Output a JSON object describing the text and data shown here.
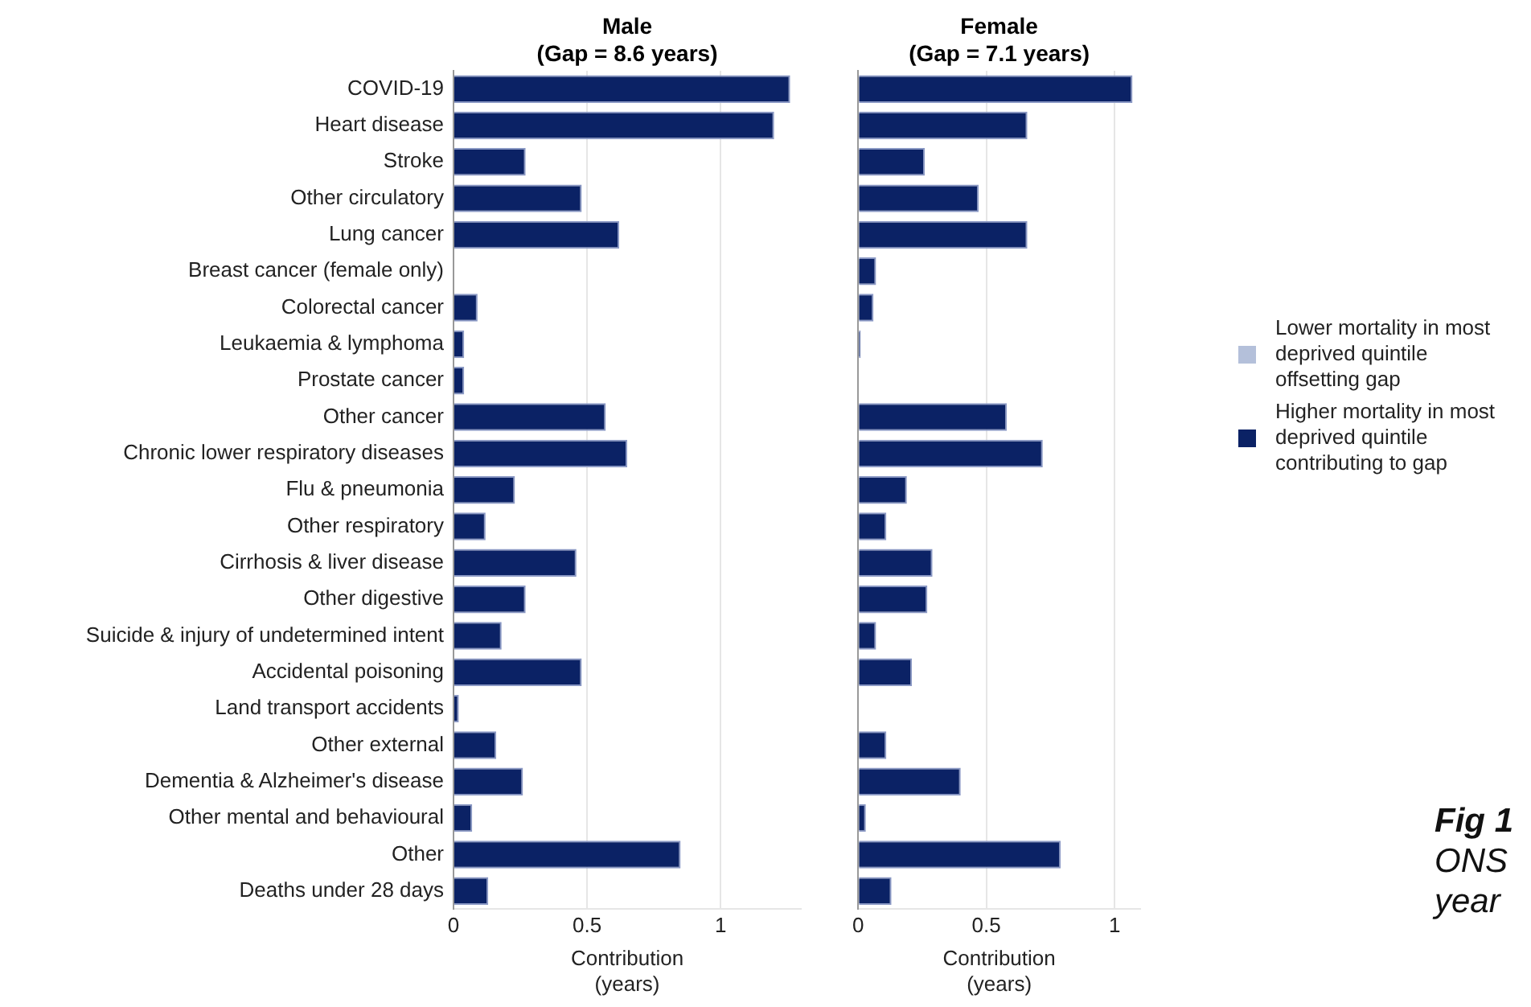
{
  "chart_data": [
    {
      "type": "bar",
      "orientation": "horizontal",
      "title": "Male\n(Gap = 8.6 years)",
      "xlabel": "Contribution\n(years)",
      "categories": [
        "COVID-19",
        "Heart disease",
        "Stroke",
        "Other circulatory",
        "Lung cancer",
        "Breast cancer (female only)",
        "Colorectal cancer",
        "Leukaemia & lymphoma",
        "Prostate cancer",
        "Other cancer",
        "Chronic lower respiratory diseases",
        "Flu & pneumonia",
        "Other respiratory",
        "Cirrhosis & liver disease",
        "Other digestive",
        "Suicide & injury of undetermined intent",
        "Accidental poisoning",
        "Land transport accidents",
        "Other external",
        "Dementia & Alzheimer's disease",
        "Other mental and behavioural",
        "Other",
        "Deaths under 28 days"
      ],
      "series": [
        {
          "color": "#0b2265",
          "values": [
            1.26,
            1.2,
            0.27,
            0.48,
            0.62,
            0,
            0.09,
            0.04,
            0.04,
            0.57,
            0.65,
            0.23,
            0.12,
            0.46,
            0.27,
            0.18,
            0.48,
            0.02,
            0.16,
            0.26,
            0.07,
            0.85,
            0.13
          ]
        }
      ],
      "xlim": [
        0,
        1.3
      ],
      "xticks": [
        0,
        0.5,
        1
      ],
      "grid": "x"
    },
    {
      "type": "bar",
      "orientation": "horizontal",
      "title": "Female\n(Gap = 7.1 years)",
      "xlabel": "Contribution\n(years)",
      "categories": [
        null,
        null,
        null,
        null,
        null,
        null,
        null,
        null,
        null,
        null,
        null,
        null,
        null,
        null,
        null,
        null,
        null,
        null,
        null,
        null,
        null,
        null,
        null
      ],
      "series": [
        {
          "name": "Lower mortality in most deprived quintile offsetting gap",
          "color": "#b4c0da",
          "values": [
            null,
            null,
            null,
            null,
            null,
            null,
            null,
            null,
            null,
            null,
            null,
            null,
            null,
            null,
            null,
            null,
            null,
            null,
            null,
            null,
            null,
            null,
            null
          ]
        },
        {
          "name": "Higher mortality in most deprived quintile contributing to gap",
          "color": "#0b2265",
          "values": [
            1.07,
            0.66,
            0.26,
            0.47,
            0.66,
            0.07,
            0.06,
            0.01,
            0,
            0.58,
            0.72,
            0.19,
            0.11,
            0.29,
            0.27,
            0.07,
            0.21,
            0,
            0.11,
            0.4,
            0.03,
            0.79,
            0.13
          ]
        }
      ],
      "xlim": [
        0,
        1.1
      ],
      "xticks": [
        0,
        0.5,
        1
      ],
      "grid": "x",
      "tick_labels": "x",
      "legend": "right",
      "annotations": [
        "Fig 1",
        "ONS",
        "year"
      ]
    }
  ]
}
